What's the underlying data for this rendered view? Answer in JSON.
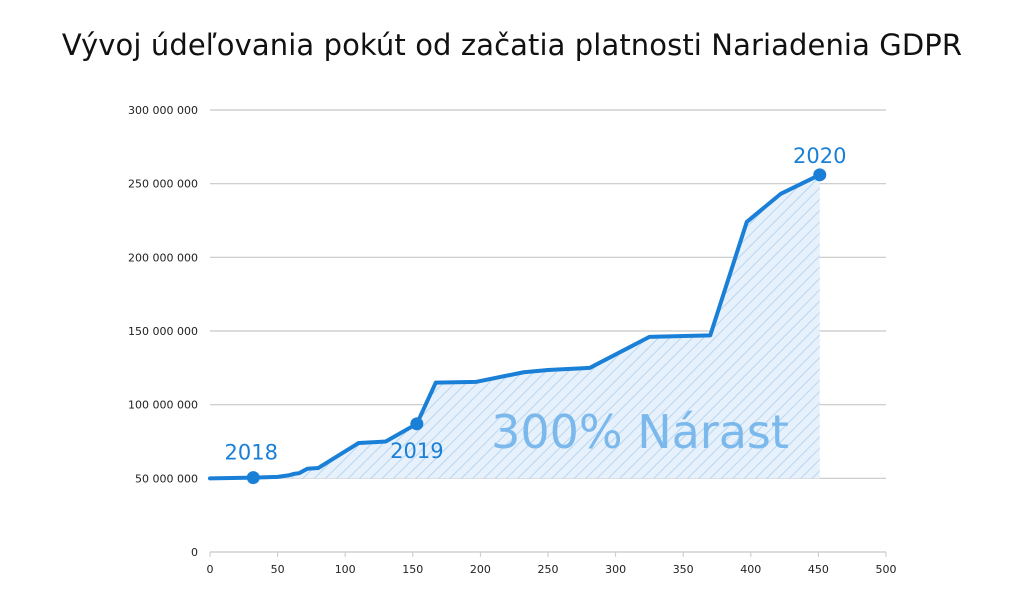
{
  "chart_data": {
    "type": "area",
    "title": "Vývoj údeľovania pokút od začatia platnosti Nariadenia GDPR",
    "xlabel": "",
    "ylabel": "",
    "xlim": [
      0,
      500
    ],
    "ylim": [
      0,
      300000000
    ],
    "x_ticks": [
      "0",
      "50",
      "100",
      "150",
      "200",
      "250",
      "300",
      "350",
      "400",
      "450",
      "500"
    ],
    "y_ticks": [
      "0",
      "50 000 000",
      "100 000 000",
      "150 000 000",
      "200 000 000",
      "250 000 000",
      "300 000 000"
    ],
    "grid": true,
    "colors": {
      "line": "#1a7fd6",
      "fill": "#e6f1fb",
      "hatch": "#b8d6f2",
      "grid": "#c8c8c8"
    },
    "series": [
      {
        "x": [
          0,
          32,
          50,
          58,
          62,
          66,
          72,
          80,
          110,
          130,
          153,
          167,
          197,
          232,
          250,
          281,
          325,
          347,
          370,
          397,
          422,
          451
        ],
        "y": [
          50000000,
          50500000,
          51000000,
          52000000,
          53000000,
          53500000,
          56500000,
          57000000,
          74000000,
          75000000,
          87000000,
          115000000,
          115500000,
          122000000,
          123500000,
          125000000,
          146000000,
          146500000,
          147000000,
          224000000,
          243000000,
          256000000
        ]
      }
    ],
    "markers": [
      {
        "x": 32,
        "y": 50500000,
        "label": "2018"
      },
      {
        "x": 153,
        "y": 87000000,
        "label": "2019"
      },
      {
        "x": 451,
        "y": 256000000,
        "label": "2020"
      }
    ],
    "annotation": "300% Nárast"
  }
}
